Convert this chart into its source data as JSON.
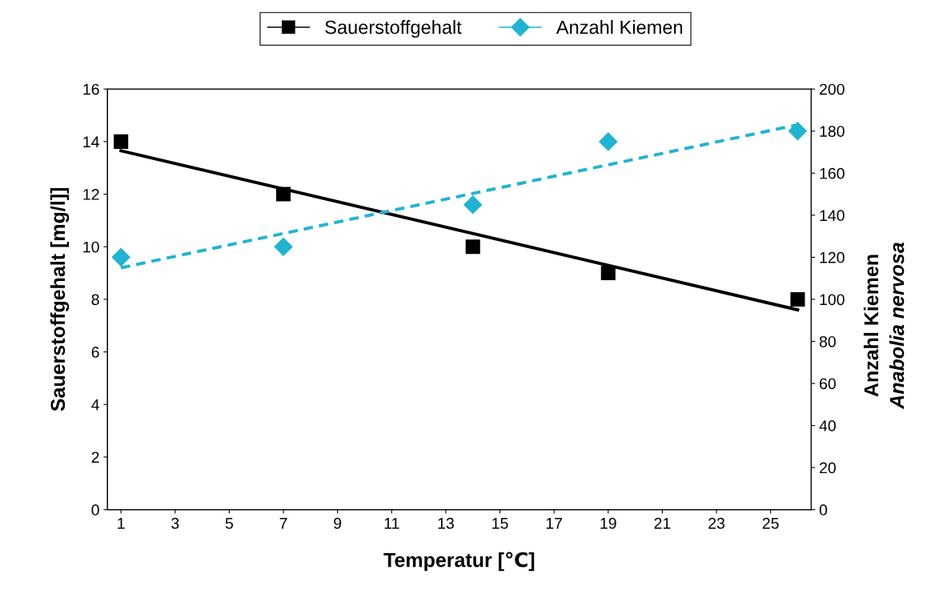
{
  "chart_data": {
    "type": "scatter",
    "xlabel": "Temperatur [℃]",
    "ylabel": "Sauerstoffgehalt [mg/l]]",
    "y2label": "Anzahl Kiemen\nAnabolia nervosa",
    "xlim": [
      0.5,
      26.5
    ],
    "xticks": [
      1,
      3,
      5,
      7,
      9,
      11,
      13,
      15,
      17,
      19,
      21,
      23,
      25
    ],
    "ylim": [
      0,
      16
    ],
    "yticks": [
      0,
      2,
      4,
      6,
      8,
      10,
      12,
      14,
      16
    ],
    "y2lim": [
      0,
      200
    ],
    "y2ticks": [
      0,
      20,
      40,
      60,
      80,
      100,
      120,
      140,
      160,
      180,
      200
    ],
    "legend": "top",
    "grid": false,
    "series": [
      {
        "name": "Sauerstoffgehalt",
        "marker": "square",
        "color": "#000000",
        "x": [
          1,
          7,
          14,
          19,
          26
        ],
        "values": [
          14,
          12,
          10,
          9,
          8
        ]
      },
      {
        "name": "Anzahl Kiemen",
        "marker": "diamond",
        "color": "#1fb4d2",
        "axis": "y2",
        "x": [
          1,
          7,
          14,
          19,
          26
        ],
        "values": [
          120,
          125,
          145,
          175,
          180
        ]
      },
      {
        "type": "line",
        "line_style": "solid",
        "color": "#000000",
        "x": [
          1,
          26
        ],
        "values": [
          13.65,
          7.6
        ]
      },
      {
        "type": "line",
        "line_style": "dashed",
        "color": "#1fb4d2",
        "axis": "y2",
        "x": [
          1,
          26
        ],
        "values": [
          115,
          183
        ]
      }
    ]
  }
}
